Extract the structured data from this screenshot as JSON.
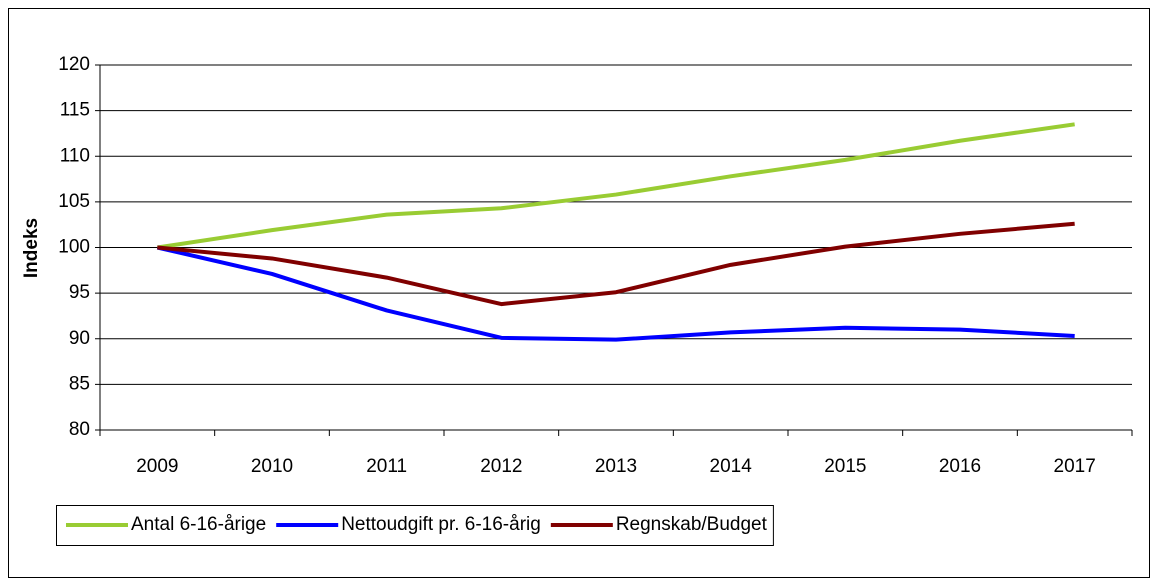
{
  "chart_data": {
    "type": "line",
    "y_label": "Indeks",
    "categories": [
      "2009",
      "2010",
      "2011",
      "2012",
      "2013",
      "2014",
      "2015",
      "2016",
      "2017"
    ],
    "series": [
      {
        "name": "Antal 6-16-årige",
        "color": "#99cc33",
        "values": [
          100,
          101.9,
          103.6,
          104.3,
          105.8,
          107.8,
          109.6,
          111.7,
          113.5
        ]
      },
      {
        "name": "Nettoudgift pr. 6-16-årig",
        "color": "#0000ff",
        "values": [
          100,
          97.1,
          93.1,
          90.1,
          89.9,
          90.7,
          91.2,
          91.0,
          90.3
        ]
      },
      {
        "name": "Regnskab/Budget",
        "color": "#800000",
        "values": [
          100,
          98.8,
          96.7,
          93.8,
          95.1,
          98.1,
          100.1,
          101.5,
          102.6
        ]
      }
    ],
    "ylim": [
      80,
      120
    ],
    "yticks": [
      80,
      85,
      90,
      95,
      100,
      105,
      110,
      115,
      120
    ],
    "grid": true,
    "legend": "bottom"
  }
}
